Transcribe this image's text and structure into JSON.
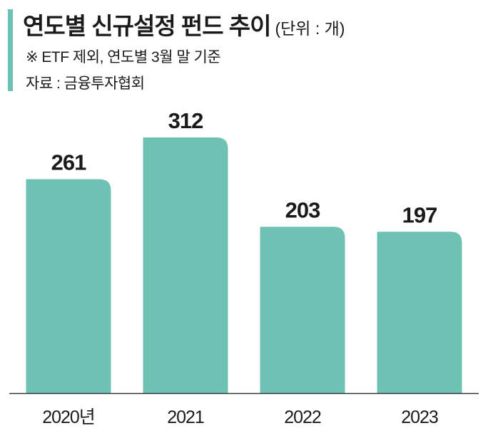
{
  "header": {
    "title": "연도별 신규설정 펀드 추이",
    "unit": "(단위 : 개)",
    "note": "※ ETF 제외, 연도별 3월 말 기준",
    "source": "자료 : 금융투자협회"
  },
  "colors": {
    "bar": "#6ec2b3",
    "accent": "#6ec2b3",
    "text": "#1a1a1a",
    "axis": "#333333"
  },
  "chart_data": {
    "type": "bar",
    "title": "연도별 신규설정 펀드 추이",
    "categories": [
      "2020년",
      "2021",
      "2022",
      "2023"
    ],
    "values": [
      261,
      312,
      203,
      197
    ],
    "xlabel": "",
    "ylabel": "",
    "ylim": [
      0,
      312
    ],
    "grid": false,
    "data_labels": true
  }
}
